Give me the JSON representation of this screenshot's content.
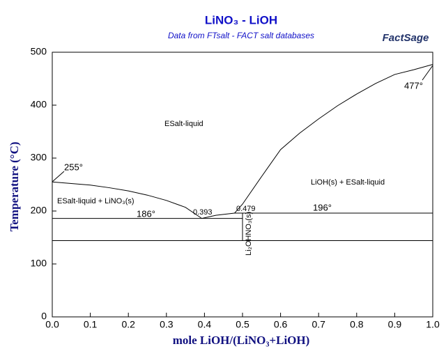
{
  "chart_data": {
    "type": "line",
    "title": "LiNO₃ - LiOH",
    "subtitle": "Data from FTsalt - FACT salt databases",
    "logo": "FactSage",
    "x_label": "mole LiOH/(LiNO₃+LiOH)",
    "y_label": "Temperature (°C)",
    "xlim": [
      0,
      1
    ],
    "ylim": [
      0,
      500
    ],
    "xticks": [
      {
        "value": 0,
        "label": "0.0"
      },
      0.1,
      0.2,
      0.3,
      0.4,
      0.5,
      0.6,
      0.7,
      0.8,
      0.9,
      {
        "value": 1,
        "label": "1.0"
      }
    ],
    "yticks": [
      0,
      100,
      200,
      300,
      400,
      500
    ],
    "grid": false,
    "color": "#000000",
    "series": [
      {
        "x": [
          0,
          0.05,
          0.1,
          0.15,
          0.2,
          0.25,
          0.3,
          0.35,
          0.393
        ],
        "values": [
          255,
          252,
          249,
          244,
          238,
          230,
          220,
          207,
          186
        ]
      },
      {
        "x": [
          0.393,
          0.43,
          0.479
        ],
        "values": [
          186,
          192,
          196
        ]
      },
      {
        "x": [
          0.479,
          0.5,
          0.55,
          0.6,
          0.65,
          0.7,
          0.75,
          0.8,
          0.85,
          0.9,
          0.95,
          1
        ],
        "values": [
          196,
          213,
          265,
          316,
          347,
          374,
          399,
          421,
          441,
          458,
          467,
          477
        ]
      },
      {
        "x": [
          0,
          0.5
        ],
        "values": [
          186,
          186
        ]
      },
      {
        "x": [
          0.479,
          1
        ],
        "values": [
          196,
          196
        ]
      },
      {
        "x": [
          0,
          1
        ],
        "values": [
          144,
          144
        ]
      },
      {
        "x": [
          0.5,
          0.5
        ],
        "values": [
          196,
          144
        ]
      }
    ],
    "annotations": [
      "255°",
      "477°",
      "186°",
      "196°",
      "0.393",
      "0.479",
      "ESalt-liquid",
      "LiOH(s) + ESalt-liquid",
      "ESalt-liquid + LiNO₃(s)",
      "Li₂OHNO₃(s)"
    ]
  }
}
